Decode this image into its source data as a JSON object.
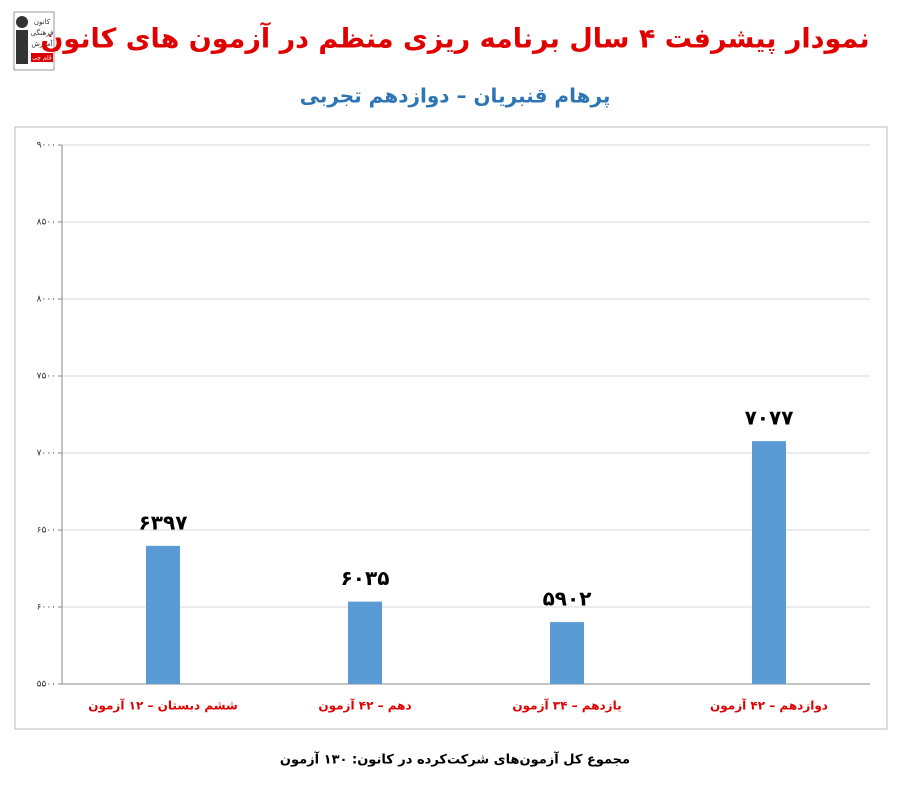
{
  "logo": {
    "lines": [
      "کانون",
      "فرهنگی",
      "آموزش",
      "قلم چی"
    ]
  },
  "chart_data": {
    "type": "bar",
    "title": "نمودار پیشرفت ۴ سال برنامه ریزی منظم در آزمون های کانون",
    "subtitle": "پرهام قنبریان – دوازدهم تجربی",
    "categories": [
      "ششم دبستان – ۱۲ آزمون",
      "دهم – ۴۲ آزمون",
      "یازدهم – ۳۴ آزمون",
      "دوازدهم – ۴۲ آزمون"
    ],
    "values": [
      6397,
      6035,
      5902,
      7077
    ],
    "value_labels": [
      "۶۳۹۷",
      "۶۰۳۵",
      "۵۹۰۲",
      "۷۰۷۷"
    ],
    "color": "#5b9bd5",
    "ylim": [
      5500,
      9000
    ],
    "yticks": [
      {
        "value": 5500,
        "label": "۵۵۰۰"
      },
      {
        "value": 6000,
        "label": "۶۰۰۰"
      },
      {
        "value": 6500,
        "label": "۶۵۰۰"
      },
      {
        "value": 7000,
        "label": "۷۰۰۰"
      },
      {
        "value": 7500,
        "label": "۷۵۰۰"
      },
      {
        "value": 8000,
        "label": "۸۰۰۰"
      },
      {
        "value": 8500,
        "label": "۸۵۰۰"
      },
      {
        "value": 9000,
        "label": "۹۰۰۰"
      }
    ],
    "grid": true,
    "footnote": "مجموع کل آزمون‌های شرکت‌کرده در کانون: ۱۳۰ آزمون"
  }
}
